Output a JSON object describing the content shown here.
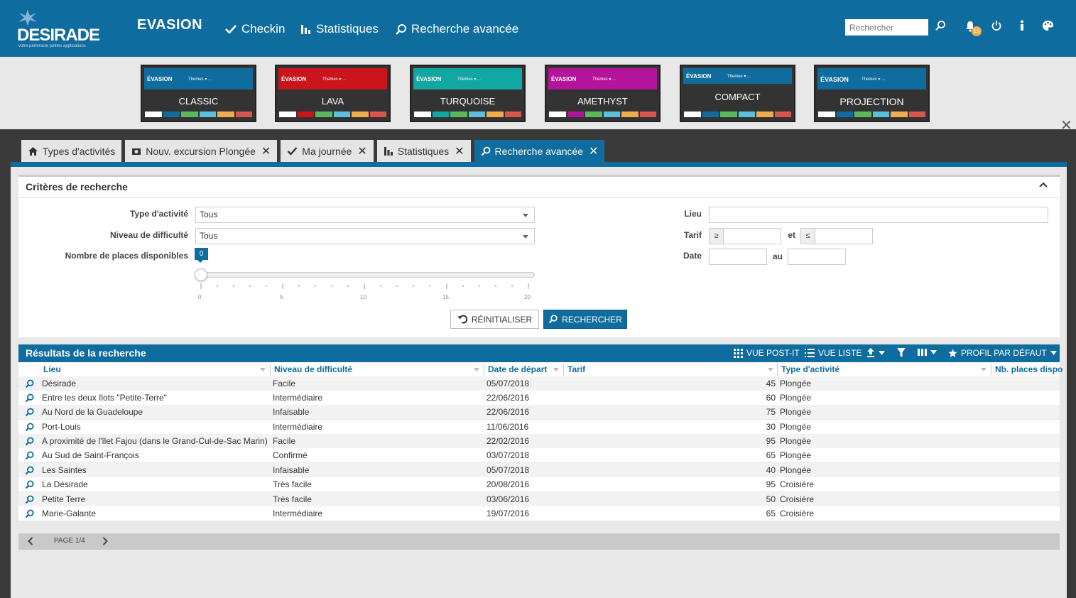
{
  "header": {
    "logo_text": "DESIRADE",
    "logo_tagline": "votre partenaire petites applications",
    "brand": "EVASION",
    "nav": [
      {
        "label": "Checkin",
        "icon": "check-icon"
      },
      {
        "label": "Statistiques",
        "icon": "bar-chart-icon"
      },
      {
        "label": "Recherche avancée",
        "icon": "search-icon"
      }
    ],
    "search_placeholder": "Rechercher",
    "notification_count": "15"
  },
  "themes": [
    {
      "name": "CLASSIC",
      "color": "#0f6c9e",
      "brand": "ÉVASION",
      "menu": "Themes ▾   ..."
    },
    {
      "name": "LAVA",
      "color": "#c9151b",
      "brand": "ÉVASION",
      "menu": "Themes ▾   ..."
    },
    {
      "name": "TURQUOISE",
      "color": "#11a7a3",
      "brand": "ÉVASION",
      "menu": "Themes ▾   ..."
    },
    {
      "name": "AMETHYST",
      "color": "#b4149a",
      "brand": "ÉVASION",
      "menu": "Themes ▾   ..."
    },
    {
      "name": "COMPACT",
      "color": "#0f6c9e",
      "brand": "ÉVASION",
      "menu": "Themes ▾   ..."
    },
    {
      "name": "PROJECTION",
      "color": "#0f6c9e",
      "brand": "ÉVASION",
      "menu": "Themes ▾   ..."
    }
  ],
  "tabs": [
    {
      "label": "Types d'activités",
      "icon": "home-icon",
      "closable": false
    },
    {
      "label": "Nouv. excursion Plongée",
      "icon": "camera-icon",
      "closable": true
    },
    {
      "label": "Ma journée",
      "icon": "check-icon",
      "closable": true
    },
    {
      "label": "Statistiques",
      "icon": "bar-chart-icon",
      "closable": true
    },
    {
      "label": "Recherche avancée",
      "icon": "search-icon",
      "closable": true,
      "active": true
    }
  ],
  "criteria": {
    "title": "Critères de recherche",
    "type_label": "Type d'activité",
    "type_value": "Tous",
    "level_label": "Niveau de difficulté",
    "level_value": "Tous",
    "places_label": "Nombre de places disponibles",
    "places_value": "0",
    "slider_ticks": [
      "0",
      "5",
      "10",
      "15",
      "20"
    ],
    "lieu_label": "Lieu",
    "tarif_label": "Tarif",
    "tarif_ge": "≥",
    "tarif_and": "et",
    "tarif_le": "≤",
    "date_label": "Date",
    "date_to": "au",
    "reset_label": "RÉINITIALISER",
    "search_label": "RECHERCHER"
  },
  "results": {
    "title": "Résultats de la recherche",
    "tools": {
      "postit": "VUE POST-IT",
      "list": "VUE LISTE",
      "profile": "PROFIL PAR DÉFAUT"
    },
    "columns": [
      "Lieu",
      "Niveau de difficulté",
      "Date de départ",
      "Tarif",
      "Type d'activité",
      "Nb. places dispo"
    ],
    "rows": [
      {
        "lieu": "Désirade",
        "niveau": "Facile",
        "date": "05/07/2018",
        "tarif": "45",
        "type": "Plongée"
      },
      {
        "lieu": "Entre les deux îlots \"Petite-Terre\"",
        "niveau": "Intermédiaire",
        "date": "22/06/2016",
        "tarif": "60",
        "type": "Plongée"
      },
      {
        "lieu": "Au Nord de la Guadeloupe",
        "niveau": "Infaisable",
        "date": "22/06/2016",
        "tarif": "75",
        "type": "Plongée"
      },
      {
        "lieu": "Port-Louis",
        "niveau": "Intermédiaire",
        "date": "11/06/2016",
        "tarif": "30",
        "type": "Plongée"
      },
      {
        "lieu": "A proximité de l'îlet Fajou (dans le Grand-Cul-de-Sac Marin)",
        "niveau": "Facile",
        "date": "22/02/2016",
        "tarif": "95",
        "type": "Plongée"
      },
      {
        "lieu": "Au Sud de Saint-François",
        "niveau": "Confirmé",
        "date": "03/07/2018",
        "tarif": "65",
        "type": "Plongée"
      },
      {
        "lieu": "Les Saintes",
        "niveau": "Infaisable",
        "date": "05/07/2018",
        "tarif": "40",
        "type": "Plongée"
      },
      {
        "lieu": "La Désirade",
        "niveau": "Très facile",
        "date": "20/08/2016",
        "tarif": "95",
        "type": "Croisière"
      },
      {
        "lieu": "Petite Terre",
        "niveau": "Très facile",
        "date": "03/06/2016",
        "tarif": "50",
        "type": "Croisière"
      },
      {
        "lieu": "Marie-Galante",
        "niveau": "Intermédiaire",
        "date": "19/07/2016",
        "tarif": "65",
        "type": "Croisière"
      }
    ],
    "page_label": "PAGE 1/4"
  },
  "colors": {
    "primary": "#0f6c9e",
    "swatch": [
      "#ffffff",
      "#0f6c9e",
      "#5cb85c",
      "#5bc0de",
      "#f0ad4e",
      "#d9534f"
    ]
  }
}
